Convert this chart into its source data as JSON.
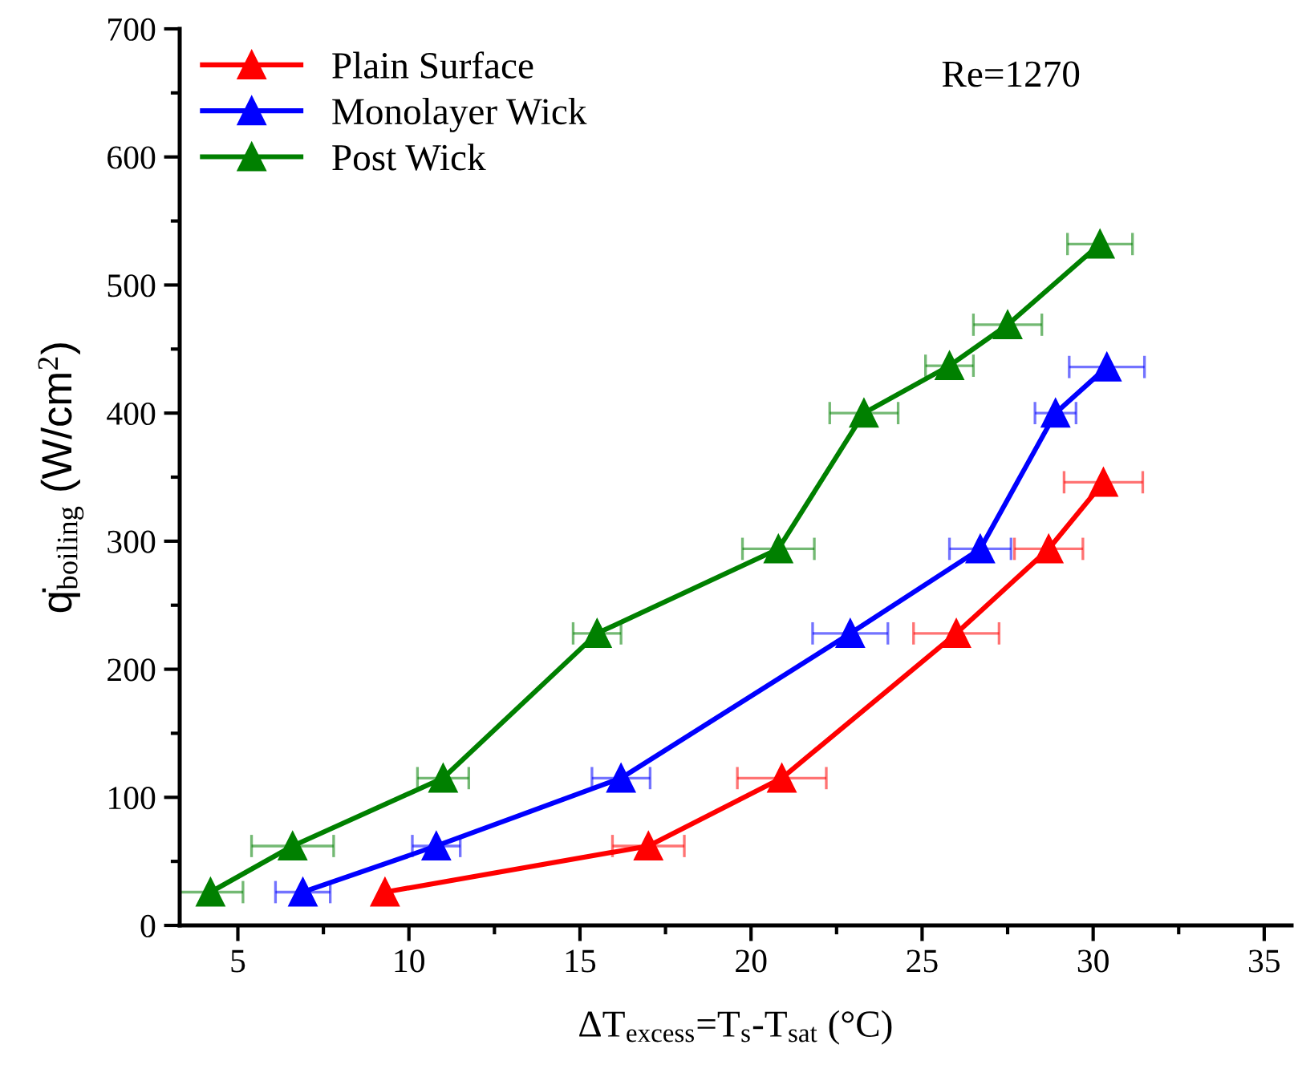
{
  "chart_data": {
    "type": "line",
    "xlabel": "ΔT$_{excess}$=T$_{s}$-T$_{sat}$ (°C)",
    "ylabel": "q̇$_{boiling}$ (W/cm$^{2}$)",
    "annotations": [
      "Re=1270"
    ],
    "xlim": [
      3.3,
      35.8
    ],
    "ylim": [
      0,
      700
    ],
    "xticks": [
      5,
      10,
      15,
      20,
      25,
      30,
      35
    ],
    "yticks": [
      0,
      100,
      200,
      300,
      400,
      500,
      600,
      700
    ],
    "grid": false,
    "legend": "top left",
    "marker": "triangle",
    "line_style": "solid",
    "series": [
      {
        "name": "Plain Surface",
        "color": "#ff0000",
        "x": [
          9.3,
          17.0,
          20.9,
          26.0,
          28.7,
          30.3
        ],
        "values": [
          26,
          62,
          115,
          228,
          294,
          346
        ],
        "xerrors": [
          null,
          1.05,
          1.3,
          1.25,
          1.0,
          1.15
        ]
      },
      {
        "name": "Monolayer Wick",
        "color": "#0000ff",
        "x": [
          6.9,
          10.8,
          16.2,
          22.9,
          26.7,
          28.9,
          30.4
        ],
        "values": [
          26,
          62,
          115,
          228,
          294,
          400,
          436
        ],
        "xerrors": [
          0.8,
          0.7,
          0.85,
          1.1,
          0.9,
          0.6,
          1.1
        ]
      },
      {
        "name": "Post Wick",
        "color": "#008000",
        "x": [
          4.2,
          6.6,
          11.0,
          15.5,
          20.8,
          23.3,
          25.8,
          27.5,
          30.2
        ],
        "values": [
          26,
          62,
          115,
          228,
          294,
          400,
          437,
          469,
          532
        ],
        "xerrors": [
          0.95,
          1.2,
          0.75,
          0.7,
          1.05,
          1.0,
          0.7,
          1.0,
          0.95
        ]
      }
    ]
  }
}
